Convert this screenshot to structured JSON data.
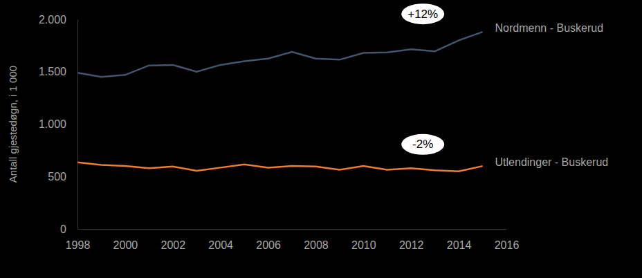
{
  "chart_data": {
    "type": "line",
    "y_label": "Antall gjestedøgn, i 1 000",
    "x": [
      1998,
      1999,
      2000,
      2001,
      2002,
      2003,
      2004,
      2005,
      2006,
      2007,
      2008,
      2009,
      2010,
      2011,
      2012,
      2013,
      2014,
      2015
    ],
    "series": [
      {
        "name": "Nordmenn - Buskerud",
        "color": "#44546A",
        "annotation": "+12%",
        "values": [
          1490,
          1450,
          1470,
          1560,
          1565,
          1500,
          1565,
          1600,
          1625,
          1690,
          1625,
          1615,
          1680,
          1685,
          1715,
          1695,
          1800,
          1880
        ]
      },
      {
        "name": "Utlendinger - Buskerud",
        "color": "#ED7D31",
        "annotation": "-2%",
        "values": [
          635,
          610,
          600,
          580,
          595,
          555,
          585,
          615,
          585,
          600,
          595,
          565,
          600,
          565,
          580,
          560,
          550,
          600
        ]
      }
    ],
    "xlim": [
      1998,
      2016
    ],
    "xticks": [
      1998,
      2000,
      2002,
      2004,
      2006,
      2008,
      2010,
      2012,
      2014,
      2016
    ],
    "ylim": [
      0,
      2000
    ],
    "yticks": [
      0,
      500,
      {
        "value": 1000,
        "label": "1.000"
      },
      {
        "value": 1500,
        "label": "1.500"
      },
      {
        "value": 2000,
        "label": "2.000"
      }
    ],
    "grid": false
  }
}
